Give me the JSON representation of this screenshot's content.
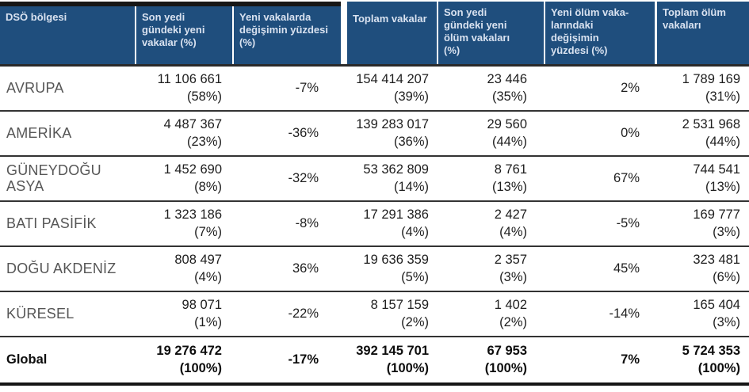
{
  "table": {
    "columns": [
      {
        "key": "region",
        "label": "DSÖ bölgesi"
      },
      {
        "key": "new_cases",
        "label": "Son yedi gündeki yeni vakalar (%)"
      },
      {
        "key": "case_change",
        "label": "Yeni vakalarda değişimin yüzdesi (%)"
      },
      {
        "key": "total_cases",
        "label": "Toplam vakalar"
      },
      {
        "key": "new_deaths",
        "label": "Son yedi gündeki yeni ölüm vakaları (%)"
      },
      {
        "key": "death_change",
        "label": "Yeni ölüm vaka-larındaki değişimin yüzdesi (%)"
      },
      {
        "key": "total_deaths",
        "label": "Toplam ölüm vakaları"
      }
    ],
    "rows": [
      {
        "region": "AVRUPA",
        "new_cases": "11 106 661",
        "new_cases_pct": "(58%)",
        "case_change": "-7%",
        "total_cases": "154 414 207",
        "total_cases_pct": "(39%)",
        "new_deaths": "23 446",
        "new_deaths_pct": "(35%)",
        "death_change": "2%",
        "total_deaths": "1 789 169",
        "total_deaths_pct": "(31%)",
        "bold": false
      },
      {
        "region": "AMERİKA",
        "new_cases": "4 487 367",
        "new_cases_pct": "(23%)",
        "case_change": "-36%",
        "total_cases": "139 283 017",
        "total_cases_pct": "(36%)",
        "new_deaths": "29 560",
        "new_deaths_pct": "(44%)",
        "death_change": "0%",
        "total_deaths": "2 531 968",
        "total_deaths_pct": "(44%)",
        "bold": false
      },
      {
        "region": "GÜNEYDOĞU ASYA",
        "new_cases": "1 452 690",
        "new_cases_pct": "(8%)",
        "case_change": "-32%",
        "total_cases": "53 362 809",
        "total_cases_pct": "(14%)",
        "new_deaths": "8 761",
        "new_deaths_pct": "(13%)",
        "death_change": "67%",
        "total_deaths": "744 541",
        "total_deaths_pct": "(13%)",
        "bold": false
      },
      {
        "region": "BATI PASİFİK",
        "new_cases": "1 323 186",
        "new_cases_pct": "(7%)",
        "case_change": "-8%",
        "total_cases": "17 291 386",
        "total_cases_pct": "(4%)",
        "new_deaths": "2 427",
        "new_deaths_pct": "(4%)",
        "death_change": "-5%",
        "total_deaths": "169 777",
        "total_deaths_pct": "(3%)",
        "bold": false
      },
      {
        "region": "DOĞU AKDENİZ",
        "new_cases": "808 497",
        "new_cases_pct": "(4%)",
        "case_change": "36%",
        "total_cases": "19 636 359",
        "total_cases_pct": "(5%)",
        "new_deaths": "2 357",
        "new_deaths_pct": "(3%)",
        "death_change": "45%",
        "total_deaths": "323 481",
        "total_deaths_pct": "(6%)",
        "bold": false
      },
      {
        "region": "KÜRESEL",
        "new_cases": "98 071",
        "new_cases_pct": "(1%)",
        "case_change": "-22%",
        "total_cases": "8 157 159",
        "total_cases_pct": "(2%)",
        "new_deaths": "1 402",
        "new_deaths_pct": "(2%)",
        "death_change": "-14%",
        "total_deaths": "165 404",
        "total_deaths_pct": "(3%)",
        "bold": false
      },
      {
        "region": "Global",
        "new_cases": "19 276 472",
        "new_cases_pct": "(100%)",
        "case_change": "-17%",
        "total_cases": "392 145 701",
        "total_cases_pct": "(100%)",
        "new_deaths": "67 953",
        "new_deaths_pct": "(100%)",
        "death_change": "7%",
        "total_deaths": "5 724 353",
        "total_deaths_pct": "(100%)",
        "bold": true
      }
    ]
  },
  "colors": {
    "header_bg": "#1f4e7d",
    "header_text": "#d9e2f0",
    "body_text": "#1e1e1e",
    "region_text": "#565656",
    "row_border": "#333333",
    "outer_border": "#161616"
  }
}
